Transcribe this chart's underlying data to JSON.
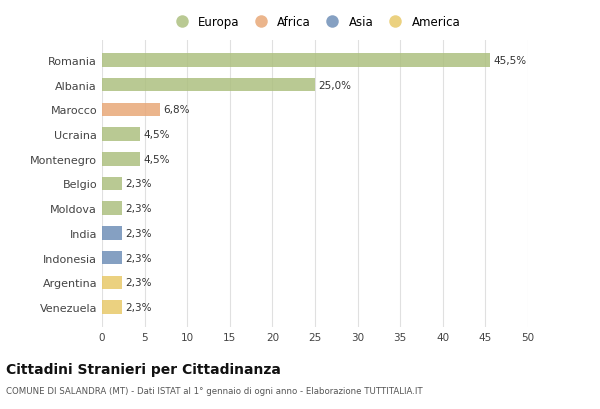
{
  "categories": [
    "Venezuela",
    "Argentina",
    "Indonesia",
    "India",
    "Moldova",
    "Belgio",
    "Montenegro",
    "Ucraina",
    "Marocco",
    "Albania",
    "Romania"
  ],
  "values": [
    2.3,
    2.3,
    2.3,
    2.3,
    2.3,
    2.3,
    4.5,
    4.5,
    6.8,
    25.0,
    45.5
  ],
  "labels": [
    "2,3%",
    "2,3%",
    "2,3%",
    "2,3%",
    "2,3%",
    "2,3%",
    "4,5%",
    "4,5%",
    "6,8%",
    "25,0%",
    "45,5%"
  ],
  "colors": [
    "#e8c96a",
    "#e8c96a",
    "#7090b8",
    "#7090b8",
    "#adc080",
    "#adc080",
    "#adc080",
    "#adc080",
    "#e8a878",
    "#adc080",
    "#adc080"
  ],
  "legend_labels": [
    "Europa",
    "Africa",
    "Asia",
    "America"
  ],
  "legend_colors": [
    "#adc080",
    "#e8a878",
    "#7090b8",
    "#e8c96a"
  ],
  "title": "Cittadini Stranieri per Cittadinanza",
  "subtitle": "COMUNE DI SALANDRA (MT) - Dati ISTAT al 1° gennaio di ogni anno - Elaborazione TUTTITALIA.IT",
  "xlim": [
    0,
    50
  ],
  "xticks": [
    0,
    5,
    10,
    15,
    20,
    25,
    30,
    35,
    40,
    45,
    50
  ],
  "bg_color": "#ffffff",
  "bar_height": 0.55,
  "grid_color": "#e0e0e0"
}
